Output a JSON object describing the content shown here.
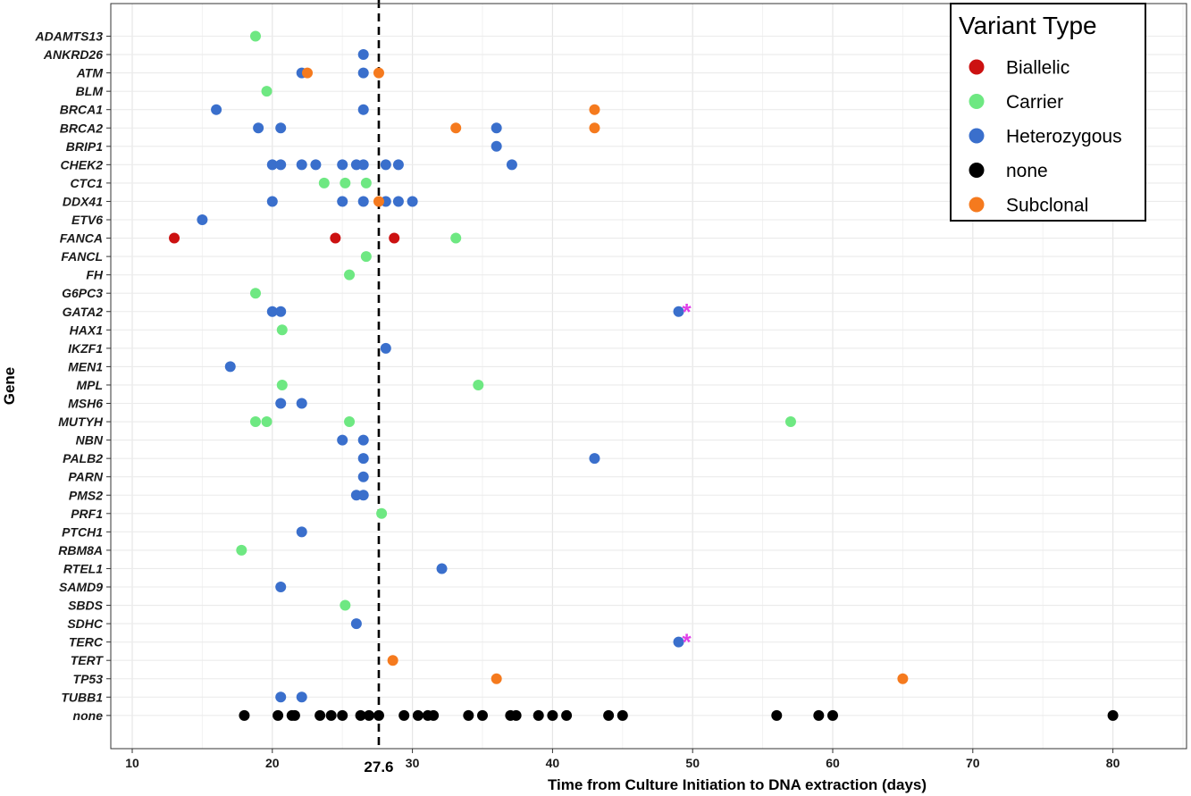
{
  "chart_data": {
    "type": "scatter",
    "title": "",
    "xlabel": "Time from Culture Initiation to DNA extraction (days)",
    "ylabel": "Gene",
    "xlim": [
      8.5,
      85
    ],
    "x_ticks": [
      10,
      20,
      30,
      40,
      50,
      60,
      70,
      80
    ],
    "x_tick_labels": [
      "10",
      "20",
      "30",
      "40",
      "50",
      "60",
      "70",
      "80"
    ],
    "grid": true,
    "legend_position": "top-right",
    "legend": {
      "title": "Variant Type",
      "entries": [
        {
          "name": "Biallelic",
          "color": "#cc1111"
        },
        {
          "name": "Carrier",
          "color": "#6ee882"
        },
        {
          "name": "Heterozygous",
          "color": "#3a6fcc"
        },
        {
          "name": "none",
          "color": "#000000"
        },
        {
          "name": "Subclonal",
          "color": "#f57a1e"
        }
      ]
    },
    "reference_line": {
      "x": 27.6,
      "label": "27.6"
    },
    "genes": [
      "ADAMTS13",
      "ANKRD26",
      "ATM",
      "BLM",
      "BRCA1",
      "BRCA2",
      "BRIP1",
      "CHEK2",
      "CTC1",
      "DDX41",
      "ETV6",
      "FANCA",
      "FANCL",
      "FH",
      "G6PC3",
      "GATA2",
      "HAX1",
      "IKZF1",
      "MEN1",
      "MPL",
      "MSH6",
      "MUTYH",
      "NBN",
      "PALB2",
      "PARN",
      "PMS2",
      "PRF1",
      "PTCH1",
      "RBM8A",
      "RTEL1",
      "SAMD9",
      "SBDS",
      "SDHC",
      "TERC",
      "TERT",
      "TP53",
      "TUBB1",
      "none"
    ],
    "series": [
      {
        "name": "Biallelic",
        "color": "#cc1111",
        "points": [
          {
            "gene": "FANCA",
            "x": 13.0
          },
          {
            "gene": "FANCA",
            "x": 24.5
          },
          {
            "gene": "FANCA",
            "x": 28.7
          }
        ]
      },
      {
        "name": "Carrier",
        "color": "#6ee882",
        "points": [
          {
            "gene": "ADAMTS13",
            "x": 18.8
          },
          {
            "gene": "BLM",
            "x": 19.6
          },
          {
            "gene": "CTC1",
            "x": 23.7
          },
          {
            "gene": "CTC1",
            "x": 25.2
          },
          {
            "gene": "CTC1",
            "x": 26.7
          },
          {
            "gene": "FANCA",
            "x": 33.1
          },
          {
            "gene": "FANCL",
            "x": 26.7
          },
          {
            "gene": "FH",
            "x": 25.5
          },
          {
            "gene": "G6PC3",
            "x": 18.8
          },
          {
            "gene": "HAX1",
            "x": 20.7
          },
          {
            "gene": "MPL",
            "x": 20.7
          },
          {
            "gene": "MPL",
            "x": 34.7
          },
          {
            "gene": "MUTYH",
            "x": 18.8
          },
          {
            "gene": "MUTYH",
            "x": 19.6
          },
          {
            "gene": "MUTYH",
            "x": 25.5
          },
          {
            "gene": "MUTYH",
            "x": 57.0
          },
          {
            "gene": "PRF1",
            "x": 27.8
          },
          {
            "gene": "RBM8A",
            "x": 17.8
          },
          {
            "gene": "SBDS",
            "x": 25.2
          }
        ]
      },
      {
        "name": "Heterozygous",
        "color": "#3a6fcc",
        "points": [
          {
            "gene": "ANKRD26",
            "x": 26.5
          },
          {
            "gene": "ATM",
            "x": 22.1
          },
          {
            "gene": "ATM",
            "x": 26.5
          },
          {
            "gene": "BRCA1",
            "x": 16.0
          },
          {
            "gene": "BRCA1",
            "x": 26.5
          },
          {
            "gene": "BRCA2",
            "x": 19.0
          },
          {
            "gene": "BRCA2",
            "x": 20.6
          },
          {
            "gene": "BRCA2",
            "x": 36.0
          },
          {
            "gene": "BRIP1",
            "x": 36.0
          },
          {
            "gene": "CHEK2",
            "x": 20.0
          },
          {
            "gene": "CHEK2",
            "x": 20.6
          },
          {
            "gene": "CHEK2",
            "x": 22.1
          },
          {
            "gene": "CHEK2",
            "x": 23.1
          },
          {
            "gene": "CHEK2",
            "x": 25.0
          },
          {
            "gene": "CHEK2",
            "x": 26.0
          },
          {
            "gene": "CHEK2",
            "x": 26.5
          },
          {
            "gene": "CHEK2",
            "x": 28.1
          },
          {
            "gene": "CHEK2",
            "x": 29.0
          },
          {
            "gene": "CHEK2",
            "x": 37.1
          },
          {
            "gene": "DDX41",
            "x": 20.0
          },
          {
            "gene": "DDX41",
            "x": 25.0
          },
          {
            "gene": "DDX41",
            "x": 26.5
          },
          {
            "gene": "DDX41",
            "x": 28.1
          },
          {
            "gene": "DDX41",
            "x": 29.0
          },
          {
            "gene": "DDX41",
            "x": 30.0
          },
          {
            "gene": "ETV6",
            "x": 15.0
          },
          {
            "gene": "GATA2",
            "x": 20.0
          },
          {
            "gene": "GATA2",
            "x": 20.6
          },
          {
            "gene": "GATA2",
            "x": 49.0
          },
          {
            "gene": "IKZF1",
            "x": 28.1
          },
          {
            "gene": "MEN1",
            "x": 17.0
          },
          {
            "gene": "MSH6",
            "x": 20.6
          },
          {
            "gene": "MSH6",
            "x": 22.1
          },
          {
            "gene": "NBN",
            "x": 25.0
          },
          {
            "gene": "NBN",
            "x": 26.5
          },
          {
            "gene": "PALB2",
            "x": 26.5
          },
          {
            "gene": "PALB2",
            "x": 43.0
          },
          {
            "gene": "PARN",
            "x": 26.5
          },
          {
            "gene": "PMS2",
            "x": 26.0
          },
          {
            "gene": "PMS2",
            "x": 26.5
          },
          {
            "gene": "PTCH1",
            "x": 22.1
          },
          {
            "gene": "RTEL1",
            "x": 32.1
          },
          {
            "gene": "SAMD9",
            "x": 20.6
          },
          {
            "gene": "SDHC",
            "x": 26.0
          },
          {
            "gene": "TERC",
            "x": 49.0
          },
          {
            "gene": "TUBB1",
            "x": 20.6
          },
          {
            "gene": "TUBB1",
            "x": 22.1
          }
        ]
      },
      {
        "name": "none",
        "color": "#000000",
        "points": [
          {
            "gene": "none",
            "x": 18.0
          },
          {
            "gene": "none",
            "x": 20.4
          },
          {
            "gene": "none",
            "x": 21.4
          },
          {
            "gene": "none",
            "x": 21.6
          },
          {
            "gene": "none",
            "x": 23.4
          },
          {
            "gene": "none",
            "x": 24.2
          },
          {
            "gene": "none",
            "x": 25.0
          },
          {
            "gene": "none",
            "x": 26.3
          },
          {
            "gene": "none",
            "x": 26.9
          },
          {
            "gene": "none",
            "x": 27.6
          },
          {
            "gene": "none",
            "x": 29.4
          },
          {
            "gene": "none",
            "x": 30.4
          },
          {
            "gene": "none",
            "x": 31.1
          },
          {
            "gene": "none",
            "x": 31.5
          },
          {
            "gene": "none",
            "x": 34.0
          },
          {
            "gene": "none",
            "x": 35.0
          },
          {
            "gene": "none",
            "x": 37.0
          },
          {
            "gene": "none",
            "x": 37.4
          },
          {
            "gene": "none",
            "x": 39.0
          },
          {
            "gene": "none",
            "x": 40.0
          },
          {
            "gene": "none",
            "x": 41.0
          },
          {
            "gene": "none",
            "x": 44.0
          },
          {
            "gene": "none",
            "x": 45.0
          },
          {
            "gene": "none",
            "x": 56.0
          },
          {
            "gene": "none",
            "x": 59.0
          },
          {
            "gene": "none",
            "x": 60.0
          },
          {
            "gene": "none",
            "x": 80.0
          }
        ]
      },
      {
        "name": "Subclonal",
        "color": "#f57a1e",
        "points": [
          {
            "gene": "ATM",
            "x": 22.5
          },
          {
            "gene": "ATM",
            "x": 27.6
          },
          {
            "gene": "BRCA1",
            "x": 43.0
          },
          {
            "gene": "BRCA2",
            "x": 33.1
          },
          {
            "gene": "BRCA2",
            "x": 43.0
          },
          {
            "gene": "DDX41",
            "x": 27.6
          },
          {
            "gene": "TERT",
            "x": 28.6
          },
          {
            "gene": "TP53",
            "x": 36.0
          },
          {
            "gene": "TP53",
            "x": 65.0
          }
        ]
      }
    ],
    "annotations": [
      {
        "gene": "GATA2",
        "x": 49.0,
        "text": "*",
        "color": "#e040e8"
      },
      {
        "gene": "TERC",
        "x": 49.0,
        "text": "*",
        "color": "#e040e8"
      }
    ]
  }
}
